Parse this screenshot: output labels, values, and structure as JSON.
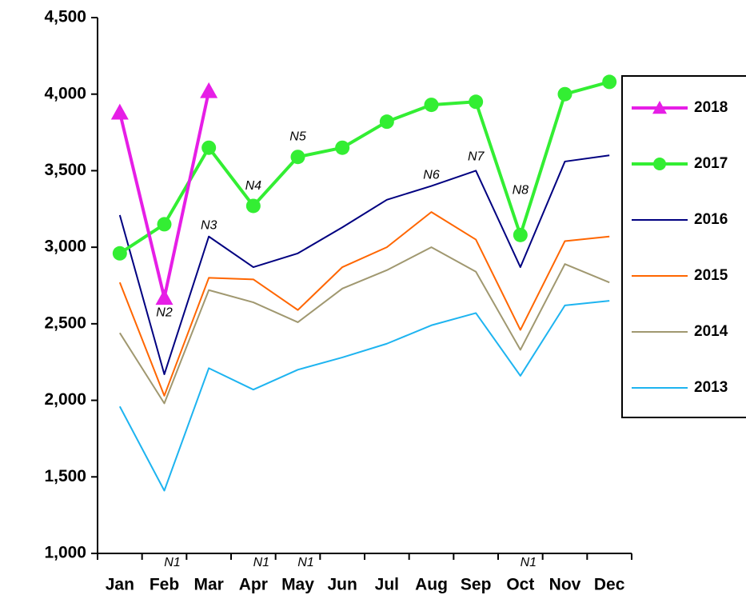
{
  "chart_data": {
    "type": "line",
    "categories": [
      "Jan",
      "Feb",
      "Mar",
      "Apr",
      "May",
      "Jun",
      "Jul",
      "Aug",
      "Sep",
      "Oct",
      "Nov",
      "Dec"
    ],
    "ylim": [
      1000,
      4500
    ],
    "yticks": [
      {
        "value": 1000,
        "label": "1,000"
      },
      {
        "value": 1500,
        "label": "1,500"
      },
      {
        "value": 2000,
        "label": "2,000"
      },
      {
        "value": 2500,
        "label": "2,500"
      },
      {
        "value": 3000,
        "label": "3,000"
      },
      {
        "value": 3500,
        "label": "3,500"
      },
      {
        "value": 4000,
        "label": "4,000"
      },
      {
        "value": 4500,
        "label": "4,500"
      }
    ],
    "legend": "right",
    "series": [
      {
        "name": "2018",
        "color": "#e61ee6",
        "marker": "triangle",
        "values": [
          3880,
          2670,
          4020,
          null,
          null,
          null,
          null,
          null,
          null,
          null,
          null,
          null
        ]
      },
      {
        "name": "2017",
        "color": "#33ee33",
        "marker": "circle",
        "values": [
          2960,
          3150,
          3650,
          3270,
          3590,
          3650,
          3820,
          3930,
          3950,
          3080,
          4000,
          4080
        ]
      },
      {
        "name": "2016",
        "color": "#000080",
        "marker": "none",
        "values": [
          3210,
          2170,
          3070,
          2870,
          2960,
          3130,
          3310,
          3400,
          3500,
          2870,
          3560,
          3600
        ]
      },
      {
        "name": "2015",
        "color": "#ff6600",
        "marker": "none",
        "values": [
          2770,
          2030,
          2800,
          2790,
          2590,
          2870,
          3000,
          3230,
          3050,
          2460,
          3040,
          3070
        ]
      },
      {
        "name": "2014",
        "color": "#a09870",
        "marker": "none",
        "values": [
          2440,
          1980,
          2720,
          2640,
          2510,
          2730,
          2850,
          3000,
          2840,
          2330,
          2890,
          2770
        ]
      },
      {
        "name": "2013",
        "color": "#1eb4f0",
        "marker": "none",
        "values": [
          1960,
          1410,
          2210,
          2070,
          2200,
          2280,
          2370,
          2490,
          2570,
          2160,
          2620,
          2650
        ]
      }
    ],
    "annotations": [
      {
        "text": "N1",
        "category": "Feb",
        "value": 1000
      },
      {
        "text": "N1",
        "category": "Apr",
        "value": 1000
      },
      {
        "text": "N1",
        "category": "May",
        "value": 1000
      },
      {
        "text": "N1",
        "category": "Oct",
        "value": 1000
      },
      {
        "text": "N2",
        "category": "Feb",
        "value": 2570
      },
      {
        "text": "N3",
        "category": "Mar",
        "value": 3140
      },
      {
        "text": "N4",
        "category": "Apr",
        "value": 3400
      },
      {
        "text": "N5",
        "category": "May",
        "value": 3720
      },
      {
        "text": "N6",
        "category": "Aug",
        "value": 3470
      },
      {
        "text": "N7",
        "category": "Sep",
        "value": 3590
      },
      {
        "text": "N8",
        "category": "Oct",
        "value": 3370
      }
    ]
  }
}
